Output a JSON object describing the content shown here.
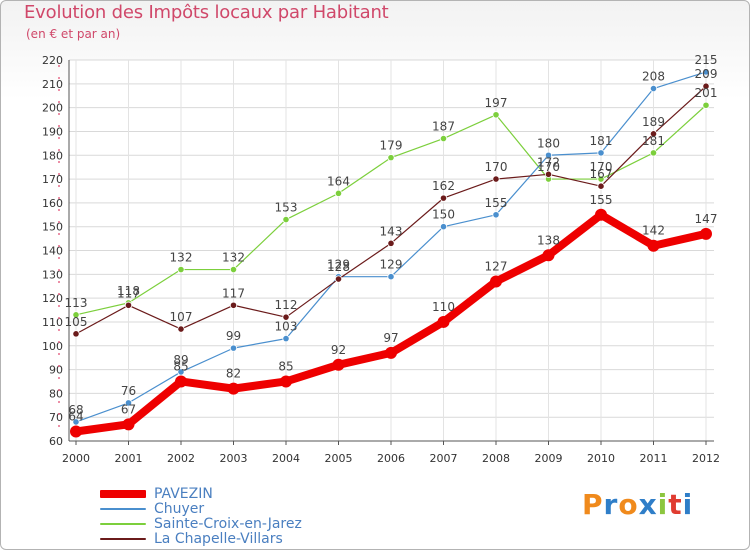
{
  "chart_data": {
    "type": "line",
    "title": "Evolution des Impôts locaux par Habitant",
    "subtitle": "(en € et par an)",
    "xlabel": "",
    "ylabel": "",
    "ylim": [
      60,
      220
    ],
    "y_ticks": [
      60,
      70,
      80,
      90,
      100,
      110,
      120,
      130,
      140,
      150,
      160,
      170,
      180,
      190,
      200,
      210,
      220
    ],
    "categories": [
      "2000",
      "2001",
      "2002",
      "2003",
      "2004",
      "2005",
      "2006",
      "2007",
      "2008",
      "2009",
      "2010",
      "2011",
      "2012"
    ],
    "grid": true,
    "series": [
      {
        "name": "Sainte-Croix-en-Jarez",
        "color": "#7ccf3c",
        "values": [
          113,
          118,
          132,
          132,
          153,
          164,
          179,
          187,
          197,
          170,
          170,
          181,
          201
        ],
        "labels": [
          "113",
          "118",
          "132",
          "132",
          "153",
          "164",
          "179",
          "187",
          "197",
          "170",
          "170",
          "181",
          "201"
        ]
      },
      {
        "name": "Chuyer",
        "color": "#4a8fce",
        "values": [
          68,
          76,
          89,
          99,
          103,
          129,
          129,
          150,
          155,
          180,
          181,
          208,
          215
        ],
        "labels": [
          "68",
          "76",
          "89",
          "99",
          "103",
          "129",
          "129",
          "150",
          "155",
          "180",
          "181",
          "208",
          "215"
        ]
      },
      {
        "name": "La Chapelle-Villars",
        "color": "#6b1b1b",
        "values": [
          105,
          117,
          107,
          117,
          112,
          128,
          143,
          162,
          170,
          172,
          167,
          189,
          209
        ],
        "labels": [
          "105",
          "117",
          "107",
          "117",
          "112",
          "128",
          "143",
          "162",
          "170",
          "172",
          "167",
          "189",
          "209"
        ]
      },
      {
        "name": "PAVEZIN",
        "color": "#ee0000",
        "values": [
          64,
          67,
          85,
          82,
          85,
          92,
          97,
          110,
          127,
          138,
          155,
          142,
          147
        ],
        "labels": [
          "64",
          "67",
          "85",
          "82",
          "85",
          "92",
          "97",
          "110",
          "127",
          "138",
          "155",
          "142",
          "147"
        ]
      }
    ],
    "legend": [
      {
        "name": "PAVEZIN",
        "color": "#ee0000"
      },
      {
        "name": "Chuyer",
        "color": "#4a8fce"
      },
      {
        "name": "Sainte-Croix-en-Jarez",
        "color": "#7ccf3c"
      },
      {
        "name": "La Chapelle-Villars",
        "color": "#6b1b1b"
      }
    ],
    "legend_position": "bottom-left"
  },
  "brand": {
    "letters": [
      "P",
      "r",
      "o",
      "x",
      "i",
      "t",
      "i"
    ],
    "colors": [
      "#f08a1c",
      "#2f7ec8",
      "#f08a1c",
      "#2f7ec8",
      "#8cc63f",
      "#e03c31",
      "#2f7ec8"
    ]
  }
}
